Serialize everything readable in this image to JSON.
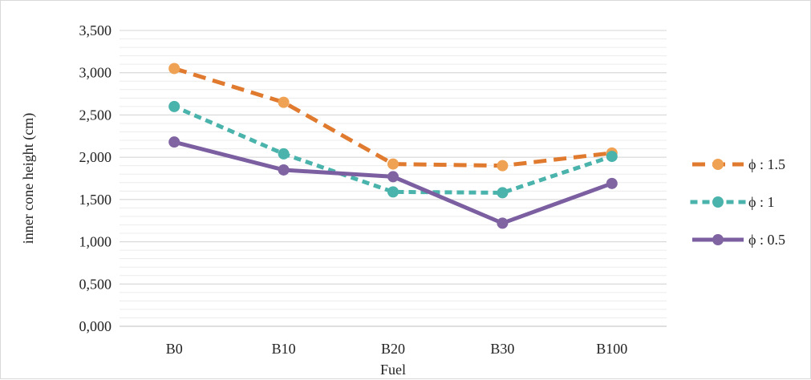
{
  "chart_data": {
    "type": "line",
    "categories": [
      "B0",
      "B10",
      "B20",
      "B30",
      "B100"
    ],
    "xlabel": "Fuel",
    "ylabel": "inner cone height (cm)",
    "ylim": [
      0,
      3.5
    ],
    "yticks": [
      0,
      0.5,
      1.0,
      1.5,
      2.0,
      2.5,
      3.0,
      3.5
    ],
    "ytick_labels": [
      "0,000",
      "0,500",
      "1,000",
      "1,500",
      "2,000",
      "2,500",
      "3,000",
      "3,500"
    ],
    "grid": true,
    "legend_position": "right",
    "series": [
      {
        "name": "ϕ : 1.5",
        "values": [
          3.05,
          2.65,
          1.92,
          1.9,
          2.05
        ],
        "color": "#f0a254",
        "line_color": "#e07a2e",
        "style": "dashed"
      },
      {
        "name": "ϕ : 1",
        "values": [
          2.6,
          2.04,
          1.59,
          1.58,
          2.01
        ],
        "color": "#4ab3ac",
        "line_color": "#4ab3ac",
        "style": "dotted"
      },
      {
        "name": "ϕ : 0.5",
        "values": [
          2.18,
          1.85,
          1.77,
          1.22,
          1.69
        ],
        "color": "#8064a2",
        "line_color": "#7b5fa0",
        "style": "solid"
      }
    ]
  }
}
